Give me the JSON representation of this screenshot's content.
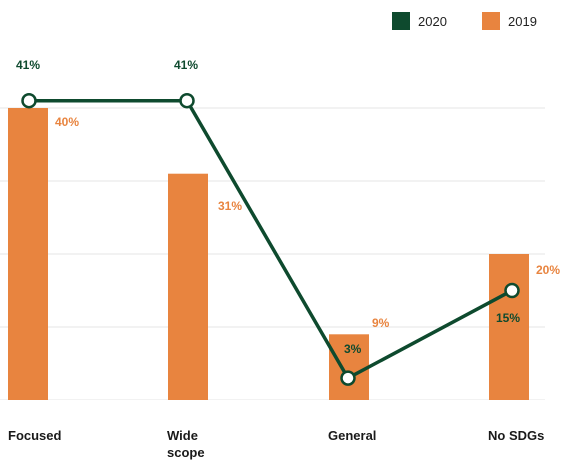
{
  "chart_data": {
    "type": "bar",
    "categories": [
      "Focused",
      "Wide scope",
      "General",
      "No SDGs"
    ],
    "series": [
      {
        "name": "2019",
        "kind": "bar",
        "color": "#e8843f",
        "values": [
          40,
          31,
          9,
          20
        ],
        "labels": [
          "40%",
          "31%",
          "9%",
          "20%"
        ]
      },
      {
        "name": "2020",
        "kind": "line",
        "color": "#0e4a2e",
        "values": [
          41,
          41,
          3,
          15
        ],
        "labels": [
          "41%",
          "41%",
          "3%",
          "15%"
        ]
      }
    ],
    "ylim": [
      0,
      50
    ],
    "grid": true,
    "legend": "top-right"
  },
  "legend": [
    {
      "label": "2020",
      "color": "#0e4a2e"
    },
    {
      "label": "2019",
      "color": "#e8843f"
    }
  ],
  "x_axis": {
    "labels": [
      {
        "line1": "Focused",
        "line2": ""
      },
      {
        "line1": "Wide",
        "line2": "scope"
      },
      {
        "line1": "General",
        "line2": ""
      },
      {
        "line1": "No SDGs",
        "line2": ""
      }
    ]
  }
}
